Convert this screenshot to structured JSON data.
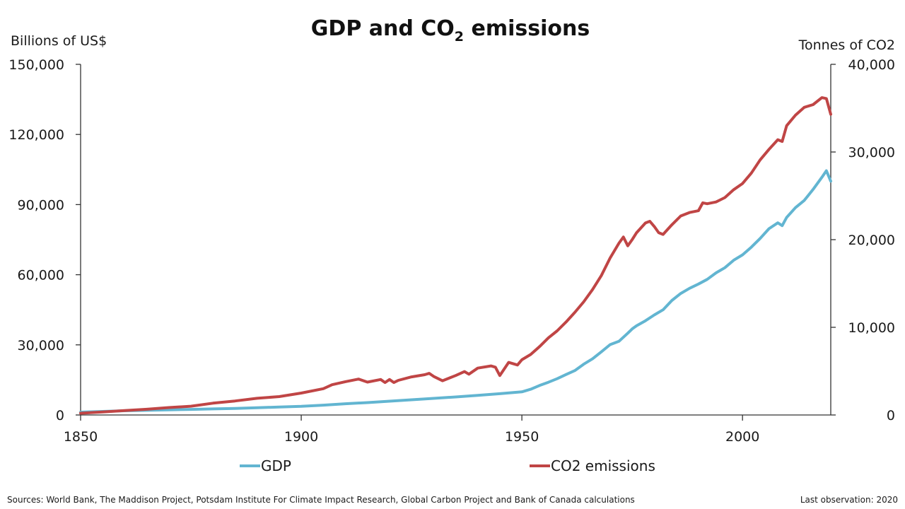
{
  "chart_data": {
    "type": "line",
    "title": {
      "prefix": "GDP and CO",
      "subscript": "2",
      "suffix": " emissions"
    },
    "left_axis": {
      "unit_label": "Billions of US$",
      "ylim": [
        0,
        150000
      ],
      "ticks": [
        0,
        30000,
        60000,
        90000,
        120000,
        150000
      ],
      "tick_labels": [
        "0",
        "30,000",
        "60,000",
        "90,000",
        "120,000",
        "150,000"
      ]
    },
    "right_axis": {
      "unit_label": "Tonnes of CO2",
      "ylim": [
        0,
        40000
      ],
      "ticks": [
        0,
        10000,
        20000,
        30000,
        40000
      ],
      "tick_labels": [
        "0",
        "10,000",
        "20,000",
        "30,000",
        "40,000"
      ]
    },
    "x_axis": {
      "xlim": [
        1850,
        2020
      ],
      "ticks": [
        1850,
        1900,
        1950,
        2000
      ],
      "tick_labels": [
        "1850",
        "1900",
        "1950",
        "2000"
      ]
    },
    "grid": false,
    "legend_position": "bottom",
    "series": [
      {
        "name": "GDP",
        "axis": "left",
        "color": "#62b5d1",
        "x": [
          1850,
          1855,
          1860,
          1865,
          1870,
          1875,
          1880,
          1885,
          1890,
          1895,
          1900,
          1905,
          1910,
          1915,
          1920,
          1925,
          1930,
          1935,
          1940,
          1945,
          1950,
          1952,
          1954,
          1956,
          1958,
          1960,
          1962,
          1964,
          1966,
          1968,
          1970,
          1972,
          1974,
          1975,
          1976,
          1978,
          1980,
          1982,
          1984,
          1986,
          1988,
          1990,
          1992,
          1994,
          1996,
          1998,
          2000,
          2002,
          2004,
          2006,
          2008,
          2009,
          2010,
          2012,
          2014,
          2016,
          2018,
          2019,
          2020
        ],
        "y": [
          1200,
          1500,
          1800,
          2000,
          2200,
          2400,
          2600,
          2800,
          3100,
          3400,
          3700,
          4200,
          4800,
          5300,
          5900,
          6500,
          7100,
          7700,
          8400,
          9100,
          9900,
          11000,
          12600,
          14000,
          15500,
          17300,
          19000,
          21700,
          24000,
          27000,
          30100,
          31500,
          35000,
          36800,
          38200,
          40300,
          42800,
          45000,
          49000,
          52000,
          54200,
          56000,
          58000,
          60800,
          63000,
          66200,
          68500,
          71800,
          75500,
          79700,
          82200,
          81000,
          84500,
          88700,
          91800,
          96500,
          101700,
          104500,
          100000
        ]
      },
      {
        "name": "CO2 emissions",
        "axis": "right",
        "color": "#c04545",
        "x": [
          1850,
          1855,
          1860,
          1865,
          1870,
          1875,
          1880,
          1885,
          1890,
          1895,
          1900,
          1905,
          1907,
          1910,
          1913,
          1915,
          1918,
          1919,
          1920,
          1921,
          1922,
          1925,
          1928,
          1929,
          1930,
          1932,
          1935,
          1937,
          1938,
          1940,
          1943,
          1944,
          1945,
          1947,
          1949,
          1950,
          1952,
          1954,
          1956,
          1958,
          1960,
          1962,
          1964,
          1966,
          1968,
          1970,
          1972,
          1973,
          1974,
          1975,
          1976,
          1978,
          1979,
          1980,
          1981,
          1982,
          1984,
          1986,
          1988,
          1990,
          1991,
          1992,
          1994,
          1996,
          1998,
          2000,
          2002,
          2004,
          2006,
          2008,
          2009,
          2010,
          2012,
          2014,
          2016,
          2018,
          2019,
          2020
        ],
        "y": [
          200,
          350,
          500,
          650,
          850,
          1000,
          1350,
          1600,
          1900,
          2100,
          2500,
          3000,
          3450,
          3800,
          4100,
          3750,
          4050,
          3700,
          4050,
          3700,
          3950,
          4350,
          4600,
          4750,
          4400,
          3900,
          4500,
          4950,
          4650,
          5350,
          5600,
          5450,
          4500,
          6000,
          5700,
          6300,
          6900,
          7800,
          8800,
          9600,
          10600,
          11700,
          12900,
          14300,
          15900,
          17900,
          19600,
          20300,
          19300,
          20000,
          20800,
          21900,
          22100,
          21500,
          20800,
          20600,
          21700,
          22700,
          23100,
          23300,
          24200,
          24100,
          24300,
          24800,
          25700,
          26400,
          27600,
          29100,
          30300,
          31400,
          31200,
          33000,
          34200,
          35100,
          35400,
          36200,
          36100,
          34300
        ]
      }
    ],
    "legend": [
      "GDP",
      "CO2 emissions"
    ],
    "footnote_sources": "Sources:  World Bank, The Maddison Project, Potsdam Institute  For Climate  Impact  Research,  Global Carbon Project  and Bank of Canada calculations",
    "footnote_last_obs": "Last observation: 2020"
  }
}
